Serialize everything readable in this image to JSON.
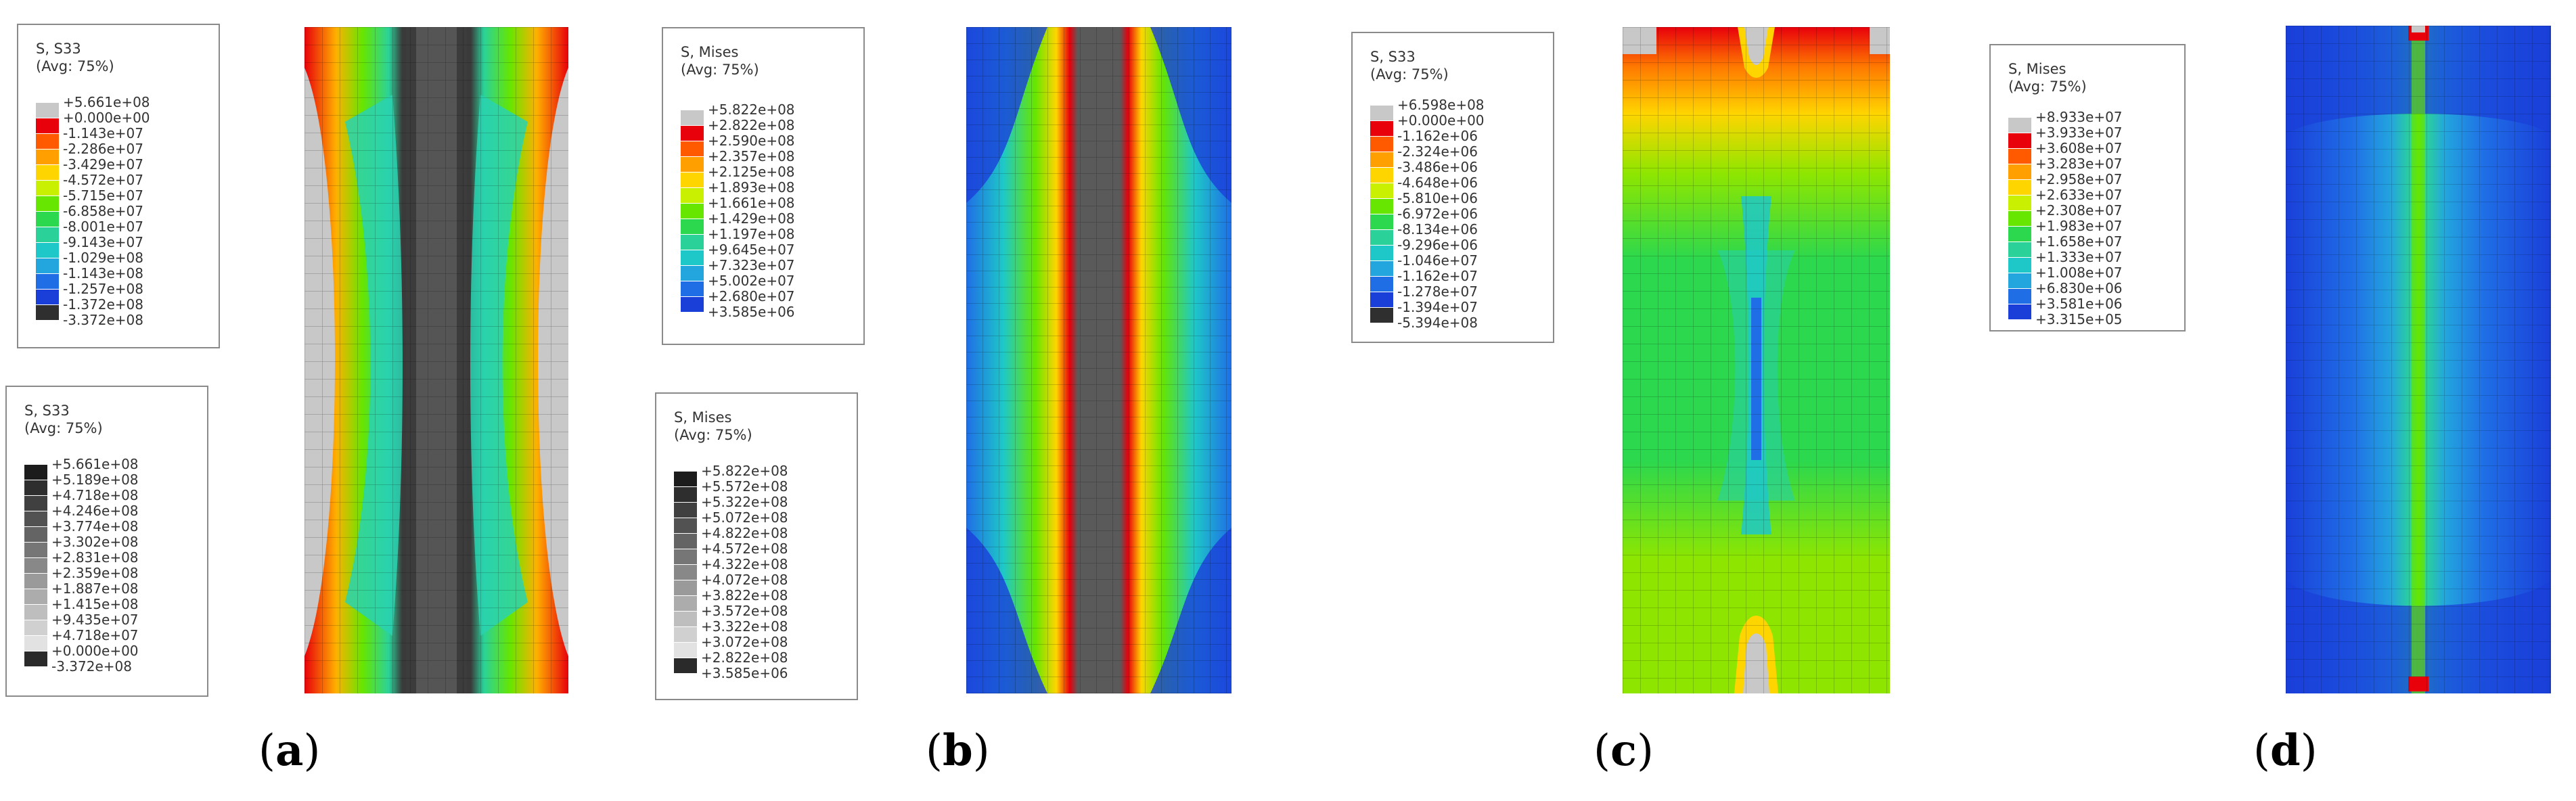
{
  "panels": [
    {
      "label": "a",
      "legends": [
        {
          "title": "S, S33",
          "avg": "(Avg: 75%)",
          "ticks": [
            "+5.661e+08",
            "+0.000e+00",
            "-1.143e+07",
            "-2.286e+07",
            "-3.429e+07",
            "-4.572e+07",
            "-5.715e+07",
            "-6.858e+07",
            "-8.001e+07",
            "-9.143e+07",
            "-1.029e+08",
            "-1.143e+08",
            "-1.257e+08",
            "-1.372e+08",
            "-3.372e+08"
          ],
          "colors": [
            "#c8c8c8",
            "#e8000b",
            "#ff5a00",
            "#ff9f00",
            "#ffd500",
            "#c8f000",
            "#66e600",
            "#2bd84e",
            "#2ad29a",
            "#1ec8c8",
            "#23a6dd",
            "#1f6ee6",
            "#1a3fd9",
            "#2f2f2f"
          ]
        },
        {
          "title": "S, S33",
          "avg": "(Avg: 75%)",
          "ticks": [
            "+5.661e+08",
            "+5.189e+08",
            "+4.718e+08",
            "+4.246e+08",
            "+3.774e+08",
            "+3.302e+08",
            "+2.831e+08",
            "+2.359e+08",
            "+1.887e+08",
            "+1.415e+08",
            "+9.435e+07",
            "+4.718e+07",
            "+0.000e+00",
            "-3.372e+08"
          ],
          "colors": [
            "#1c1c1c",
            "#2e2e2e",
            "#404040",
            "#525252",
            "#646464",
            "#767676",
            "#888888",
            "#9a9a9a",
            "#acacac",
            "#bebebe",
            "#d0d0d0",
            "#e2e2e2",
            "#2a2a2a"
          ]
        }
      ]
    },
    {
      "label": "b",
      "legends": [
        {
          "title": "S, Mises",
          "avg": "(Avg: 75%)",
          "ticks": [
            "+5.822e+08",
            "+2.822e+08",
            "+2.590e+08",
            "+2.357e+08",
            "+2.125e+08",
            "+1.893e+08",
            "+1.661e+08",
            "+1.429e+08",
            "+1.197e+08",
            "+9.645e+07",
            "+7.323e+07",
            "+5.002e+07",
            "+2.680e+07",
            "+3.585e+06"
          ],
          "colors": [
            "#c8c8c8",
            "#e8000b",
            "#ff5a00",
            "#ff9f00",
            "#ffd500",
            "#c8f000",
            "#66e600",
            "#2bd84e",
            "#2ad29a",
            "#1ec8c8",
            "#23a6dd",
            "#1f6ee6",
            "#1a3fd9"
          ]
        },
        {
          "title": "S, Mises",
          "avg": "(Avg: 75%)",
          "ticks": [
            "+5.822e+08",
            "+5.572e+08",
            "+5.322e+08",
            "+5.072e+08",
            "+4.822e+08",
            "+4.572e+08",
            "+4.322e+08",
            "+4.072e+08",
            "+3.822e+08",
            "+3.572e+08",
            "+3.322e+08",
            "+3.072e+08",
            "+2.822e+08",
            "+3.585e+06"
          ],
          "colors": [
            "#1c1c1c",
            "#2e2e2e",
            "#404040",
            "#525252",
            "#646464",
            "#767676",
            "#888888",
            "#9a9a9a",
            "#acacac",
            "#bebebe",
            "#d0d0d0",
            "#e2e2e2",
            "#2a2a2a"
          ]
        }
      ]
    },
    {
      "label": "c",
      "legends": [
        {
          "title": "S, S33",
          "avg": "(Avg: 75%)",
          "ticks": [
            "+6.598e+08",
            "+0.000e+00",
            "-1.162e+06",
            "-2.324e+06",
            "-3.486e+06",
            "-4.648e+06",
            "-5.810e+06",
            "-6.972e+06",
            "-8.134e+06",
            "-9.296e+06",
            "-1.046e+07",
            "-1.162e+07",
            "-1.278e+07",
            "-1.394e+07",
            "-5.394e+08"
          ],
          "colors": [
            "#c8c8c8",
            "#e8000b",
            "#ff5a00",
            "#ff9f00",
            "#ffd500",
            "#c8f000",
            "#66e600",
            "#2bd84e",
            "#2ad29a",
            "#1ec8c8",
            "#23a6dd",
            "#1f6ee6",
            "#1a3fd9",
            "#2f2f2f"
          ]
        }
      ]
    },
    {
      "label": "d",
      "legends": [
        {
          "title": "S, Mises",
          "avg": "(Avg: 75%)",
          "ticks": [
            "+8.933e+07",
            "+3.933e+07",
            "+3.608e+07",
            "+3.283e+07",
            "+2.958e+07",
            "+2.633e+07",
            "+2.308e+07",
            "+1.983e+07",
            "+1.658e+07",
            "+1.333e+07",
            "+1.008e+07",
            "+6.830e+06",
            "+3.581e+06",
            "+3.315e+05"
          ],
          "colors": [
            "#c8c8c8",
            "#e8000b",
            "#ff5a00",
            "#ff9f00",
            "#ffd500",
            "#c8f000",
            "#66e600",
            "#2bd84e",
            "#2ad29a",
            "#1ec8c8",
            "#23a6dd",
            "#1f6ee6",
            "#1a3fd9"
          ]
        }
      ]
    }
  ]
}
